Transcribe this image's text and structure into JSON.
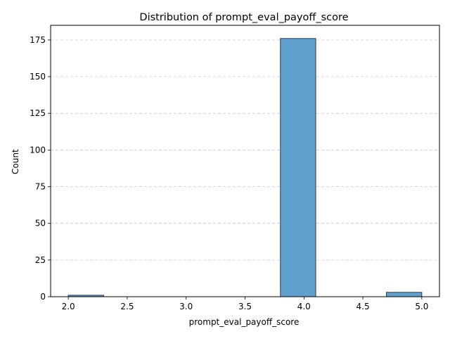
{
  "chart_data": {
    "type": "bar",
    "title": "Distribution of prompt_eval_payoff_score",
    "xlabel": "prompt_eval_payoff_score",
    "ylabel": "Count",
    "xlim": [
      1.85,
      5.15
    ],
    "ylim": [
      0,
      185
    ],
    "xticks": [
      2.0,
      2.5,
      3.0,
      3.5,
      4.0,
      4.5,
      5.0
    ],
    "xtick_labels": [
      "2.0",
      "2.5",
      "3.0",
      "3.5",
      "4.0",
      "4.5",
      "5.0"
    ],
    "yticks": [
      0,
      25,
      50,
      75,
      100,
      125,
      150,
      175
    ],
    "ytick_labels": [
      "0",
      "25",
      "50",
      "75",
      "100",
      "125",
      "150",
      "175"
    ],
    "grid": "horizontal dashed",
    "bins": [
      {
        "x0": 2.0,
        "x1": 2.3,
        "count": 1
      },
      {
        "x0": 2.3,
        "x1": 2.6,
        "count": 0
      },
      {
        "x0": 2.6,
        "x1": 2.9,
        "count": 0
      },
      {
        "x0": 2.9,
        "x1": 3.2,
        "count": 0
      },
      {
        "x0": 3.2,
        "x1": 3.5,
        "count": 0
      },
      {
        "x0": 3.5,
        "x1": 3.8,
        "count": 0
      },
      {
        "x0": 3.8,
        "x1": 4.1,
        "count": 176
      },
      {
        "x0": 4.1,
        "x1": 4.4,
        "count": 0
      },
      {
        "x0": 4.4,
        "x1": 4.7,
        "count": 0
      },
      {
        "x0": 4.7,
        "x1": 5.0,
        "count": 3
      }
    ],
    "bar_color": "#5fa0cf",
    "bar_edge_color": "#2b3a48",
    "grid_color": "#cccccc"
  }
}
